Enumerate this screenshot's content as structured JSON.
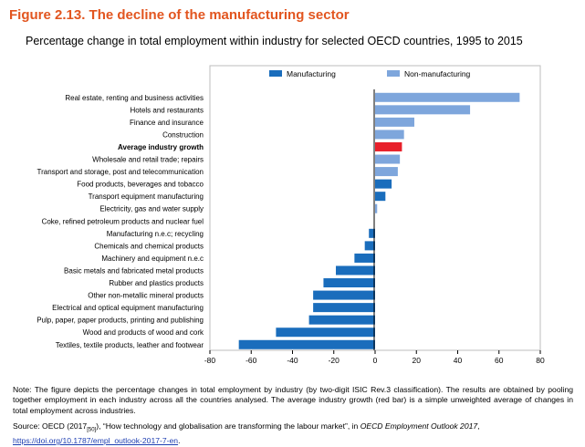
{
  "figure": {
    "title": "Figure 2.13. The decline of the manufacturing sector",
    "subtitle": "Percentage change in total employment within industry for selected OECD countries, 1995 to 2015"
  },
  "colors": {
    "manufacturing": "#1a6dbc",
    "non_manufacturing": "#7ea6dc",
    "average": "#e8202a",
    "title": "#e2551f"
  },
  "chart_data": {
    "type": "bar",
    "orientation": "horizontal",
    "title": "",
    "xlabel": "",
    "ylabel": "",
    "xlim": [
      -80,
      80
    ],
    "xticks": [
      -80,
      -60,
      -40,
      -20,
      0,
      20,
      40,
      60,
      80
    ],
    "grid": false,
    "legend": {
      "placement": "top",
      "entries": [
        {
          "name": "Manufacturing",
          "color": "#1a6dbc"
        },
        {
          "name": "Non-manufacturing",
          "color": "#7ea6dc"
        }
      ]
    },
    "categories": [
      "Real estate, renting and business activities",
      "Hotels and restaurants",
      "Finance and insurance",
      "Construction",
      "Average industry growth",
      "Wholesale and retail trade; repairs",
      "Transport and storage, post and telecommunication",
      "Food products, beverages and tobacco",
      "Transport equipment manufacturing",
      "Electricity, gas and water supply",
      "Coke, refined petroleum products and nuclear fuel",
      "Manufacturing n.e.c; recycling",
      "Chemicals and chemical products",
      "Machinery and equipment n.e.c",
      "Basic metals and fabricated metal products",
      "Rubber and plastics products",
      "Other non-metallic mineral products",
      "Electrical and optical equipment manufacturing",
      "Pulp, paper, paper products, printing and publishing",
      "Wood and products of wood and cork",
      "Textiles, textile products, leather and footwear"
    ],
    "values": [
      70,
      46,
      19,
      14,
      13,
      12,
      11,
      8,
      5,
      1,
      0,
      -3,
      -5,
      -10,
      -19,
      -25,
      -30,
      -30,
      -32,
      -48,
      -66
    ],
    "groups": [
      "non_manufacturing",
      "non_manufacturing",
      "non_manufacturing",
      "non_manufacturing",
      "average",
      "non_manufacturing",
      "non_manufacturing",
      "manufacturing",
      "manufacturing",
      "non_manufacturing",
      "manufacturing",
      "manufacturing",
      "manufacturing",
      "manufacturing",
      "manufacturing",
      "manufacturing",
      "manufacturing",
      "manufacturing",
      "manufacturing",
      "manufacturing",
      "manufacturing"
    ],
    "bold_categories": [
      "Average industry growth"
    ]
  },
  "notes": {
    "note": "Note: The figure depicts the percentage changes in total employment by industry (by two-digit ISIC Rev.3 classification). The results are obtained by pooling together employment in each industry across all the countries analysed. The average industry growth (red bar) is a simple unweighted average of changes in total employment across industries.",
    "source_prefix": "Source: OECD (2017",
    "source_ref": "[50]",
    "source_mid": "), “How technology and globalisation are transforming the labour market”, in ",
    "source_pub": "OECD Employment Outlook 2017",
    "source_comma": ",",
    "source_link": "https://doi.org/10.1787/empl_outlook-2017-7-en",
    "source_end": "."
  }
}
